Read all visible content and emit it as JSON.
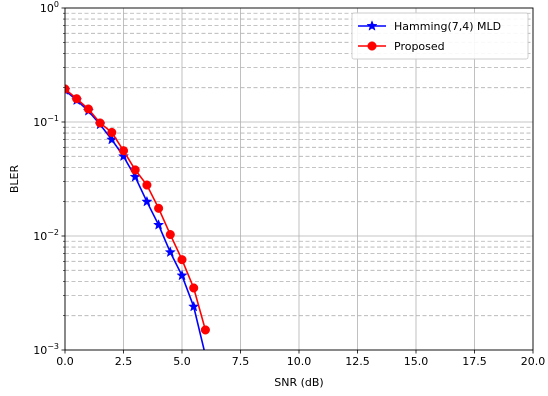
{
  "chart_data": {
    "type": "line",
    "xlabel": "SNR (dB)",
    "ylabel": "BLER",
    "xlim": [
      0,
      20
    ],
    "ylim": [
      0.001,
      1
    ],
    "yscale": "log",
    "grid": "major solid, minor dashed",
    "legend_position": "top-right",
    "x_ticks": [
      0,
      2.5,
      5,
      7.5,
      10,
      12.5,
      15,
      17.5,
      20
    ],
    "x_tick_labels": [
      "0.0",
      "2.5",
      "5.0",
      "7.5",
      "10.0",
      "12.5",
      "15.0",
      "17.5",
      "20.0"
    ],
    "y_ticks": [
      0.001,
      0.01,
      0.1,
      1
    ],
    "y_tick_labels": [
      {
        "base": "10",
        "exp": "−3"
      },
      {
        "base": "10",
        "exp": "−2"
      },
      {
        "base": "10",
        "exp": "−1"
      },
      {
        "base": "10",
        "exp": "0"
      }
    ],
    "series": [
      {
        "name": "Hamming(7,4) MLD",
        "color": "#0000ff",
        "marker": "star",
        "x": [
          0,
          0.5,
          1,
          1.5,
          2,
          2.5,
          3,
          3.5,
          4,
          4.5,
          5,
          5.5,
          6
        ],
        "y": [
          0.19,
          0.155,
          0.125,
          0.095,
          0.07,
          0.05,
          0.033,
          0.02,
          0.0125,
          0.0072,
          0.0045,
          0.0024,
          0.0009
        ]
      },
      {
        "name": "Proposed",
        "color": "#ff0000",
        "marker": "circle",
        "x": [
          0,
          0.5,
          1,
          1.5,
          2,
          2.5,
          3,
          3.5,
          4,
          4.5,
          5,
          5.5,
          6
        ],
        "y": [
          0.195,
          0.16,
          0.13,
          0.098,
          0.081,
          0.056,
          0.038,
          0.028,
          0.0175,
          0.0103,
          0.0062,
          0.0035,
          0.0015
        ]
      }
    ]
  }
}
